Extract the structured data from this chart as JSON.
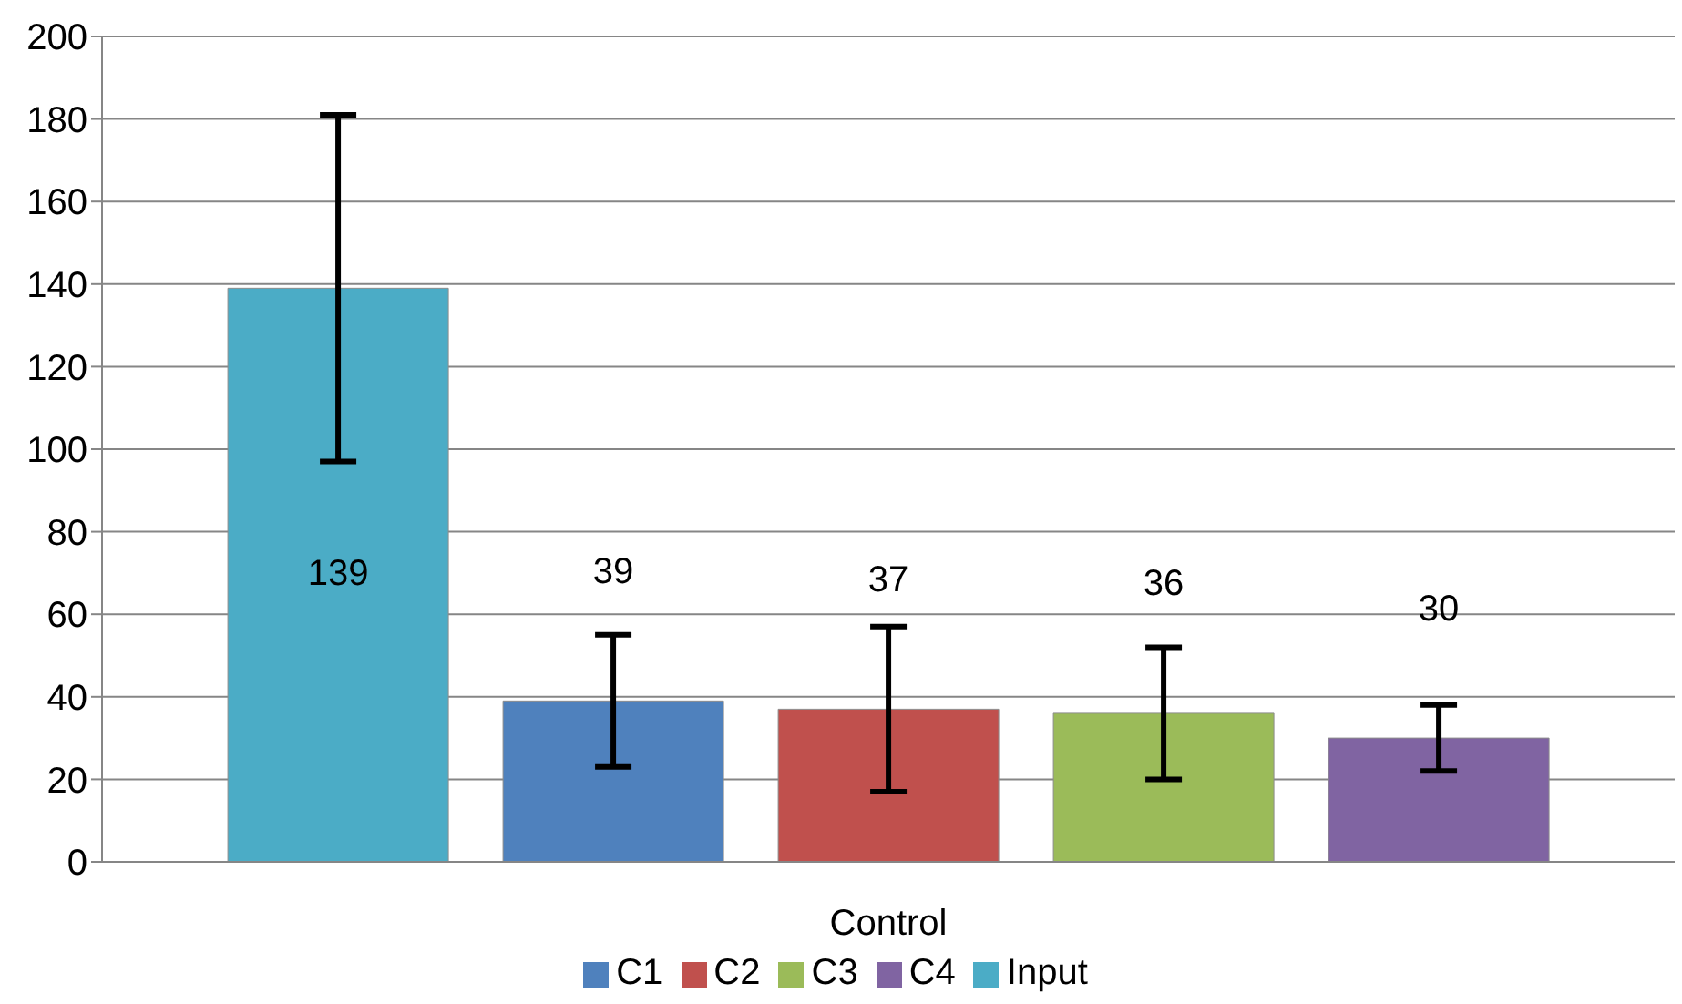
{
  "chart_data": {
    "type": "bar",
    "categories": [
      "Control"
    ],
    "series": [
      {
        "name": "Input",
        "color": "#4bacc6",
        "values": [
          139
        ],
        "errors": [
          42
        ]
      },
      {
        "name": "C1",
        "color": "#4f81bd",
        "values": [
          39
        ],
        "errors": [
          16
        ]
      },
      {
        "name": "C2",
        "color": "#c0504d",
        "values": [
          37
        ],
        "errors": [
          20
        ]
      },
      {
        "name": "C3",
        "color": "#9bbb59",
        "values": [
          36
        ],
        "errors": [
          16
        ]
      },
      {
        "name": "C4",
        "color": "#8064a2",
        "values": [
          30
        ],
        "errors": [
          8
        ]
      }
    ],
    "ylim": [
      0,
      200
    ],
    "yticks": [
      0,
      20,
      40,
      60,
      80,
      100,
      120,
      140,
      160,
      180,
      200
    ],
    "grid": "y",
    "legend": "bottom",
    "data_labels": true
  }
}
